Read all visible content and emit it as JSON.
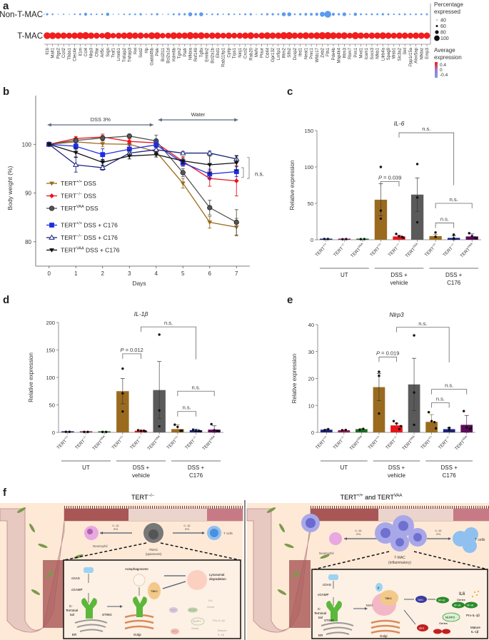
{
  "panels": {
    "a": "a",
    "b": "b",
    "c": "c",
    "d": "d",
    "e": "e",
    "f": "f"
  },
  "chart_data": [
    {
      "id": "a",
      "type": "dotplot",
      "rows": [
        "Non-T-MAC",
        "T-MAC"
      ],
      "genes": [
        "Il1b",
        "Malt1",
        "Ptgs2",
        "Ccrl2",
        "Thbs1",
        "Clec4e",
        "Il1rn",
        "Ccl4",
        "Nlrp3",
        "Cflar",
        "Arl5c",
        "Srgn",
        "Traf1",
        "Lmnb1",
        "Tnfaip2",
        "Tnfaip3",
        "Rel",
        "Sod2",
        "Hp",
        "Gadd45b",
        "Plek",
        "Bcl2l11",
        "Bcl2a1d",
        "Kdm6b",
        "Tgm2",
        "Ptafr",
        "Nfkbia",
        "Rnf149",
        "Tgfbi",
        "Emilin2",
        "Bcl2a1b",
        "Ehd1",
        "Rab11fip1",
        "Cytip",
        "Trps1",
        "Ninj1",
        "Cxcl2",
        "Rab20",
        "Mefv",
        "Plaur",
        "Cd44",
        "Gpr132",
        "Lrrfip1",
        "Ifitm2",
        "Slfn2",
        "Dusp2",
        "Ifrd1",
        "Neat1",
        "Pnrc1",
        "Wfdc17",
        "Zeb2",
        "Fth1",
        "Pde4b",
        "Map4k4",
        "Ifitm3",
        "Rbm7",
        "Pim1",
        "Mxd1",
        "Icam1",
        "Socs3",
        "Nfkb1",
        "Lilrb4a",
        "Spag9",
        "Wsb1",
        "Slc3a2",
        "Skil",
        "Ppp1r15a",
        "Alox5ap",
        "Nfkbiz",
        "Emp3"
      ],
      "non_tmac_pct": [
        55,
        50,
        40,
        45,
        40,
        48,
        52,
        62,
        50,
        48,
        50,
        65,
        40,
        42,
        48,
        50,
        50,
        55,
        42,
        50,
        55,
        40,
        45,
        52,
        55,
        55,
        72,
        58,
        72,
        48,
        50,
        52,
        45,
        52,
        48,
        48,
        52,
        55,
        40,
        50,
        55,
        55,
        52,
        72,
        72,
        50,
        55,
        60,
        60,
        62,
        80,
        95,
        62,
        55,
        70,
        45,
        65,
        52,
        50,
        52,
        52,
        55,
        52,
        48,
        50,
        52,
        48,
        50,
        50,
        52
      ],
      "tmac_pct": [
        95,
        95,
        92,
        92,
        90,
        92,
        95,
        98,
        92,
        90,
        85,
        98,
        85,
        90,
        92,
        95,
        92,
        92,
        85,
        95,
        95,
        85,
        88,
        95,
        92,
        92,
        98,
        92,
        95,
        88,
        92,
        92,
        88,
        92,
        88,
        90,
        92,
        95,
        85,
        92,
        95,
        92,
        92,
        98,
        98,
        92,
        92,
        95,
        92,
        95,
        98,
        98,
        95,
        92,
        95,
        88,
        98,
        92,
        90,
        92,
        92,
        95,
        92,
        90,
        92,
        92,
        90,
        92,
        92,
        92
      ],
      "non_tmac_color": "#5b9bf0",
      "tmac_color": "#f01e1e",
      "size_legend_title": "Percentage expressed",
      "size_legend": [
        "40",
        "60",
        "80",
        "100"
      ],
      "color_legend_title": "Average expression",
      "color_legend": [
        "0.4",
        "0",
        "-0.4"
      ],
      "color_scale": [
        "#f01e1e",
        "#a27ac5",
        "#7a9df0"
      ]
    },
    {
      "id": "b",
      "type": "line",
      "title": "",
      "xlabel": "Days",
      "ylabel": "Body weight (%)",
      "x": [
        0,
        1,
        2,
        3,
        4,
        5,
        6,
        7
      ],
      "xlim": [
        -0.5,
        7.5
      ],
      "ylim": [
        75,
        110
      ],
      "yticks": [
        80,
        90,
        100
      ],
      "annotations": [
        {
          "text": "DSS 3%",
          "from": 0,
          "to": 4
        },
        {
          "text": "Water",
          "from": 4,
          "to": 7
        },
        {
          "text": "n.s."
        }
      ],
      "series": [
        {
          "name": "TERT+/+ DSS",
          "base": "TERT",
          "sup": "+/+",
          "suffix": " DSS",
          "color": "#9a6b1f",
          "marker": "tri-down",
          "values": [
            100,
            100.5,
            100.1,
            100,
            98.5,
            92,
            84,
            83
          ],
          "err": [
            0.3,
            0.5,
            0.6,
            0.5,
            0.7,
            1.0,
            1.2,
            1.8
          ]
        },
        {
          "name": "TERT-/- DSS",
          "base": "TERT",
          "sup": "−/−",
          "suffix": " DSS",
          "color": "#e8141a",
          "marker": "diamond",
          "values": [
            100,
            101.2,
            101.5,
            100.6,
            100.3,
            96.5,
            93,
            92.5
          ],
          "err": [
            0.2,
            0.4,
            0.6,
            0.5,
            0.6,
            1.0,
            1.6,
            3.1
          ]
        },
        {
          "name": "TERTVAA DSS",
          "base": "TERT",
          "sup": "VAA",
          "suffix": " DSS",
          "color": "#555555",
          "marker": "circle",
          "values": [
            100,
            100.8,
            101.3,
            101.7,
            100.7,
            94.2,
            87,
            84
          ],
          "err": [
            0.2,
            0.4,
            0.5,
            0.4,
            1.2,
            0.8,
            1.5,
            2.6
          ]
        },
        {
          "name": "TERT+/+ DSS + C176",
          "base": "TERT",
          "sup": "+/+",
          "suffix": " DSS + C176",
          "color": "#1c2ee0",
          "marker": "square",
          "values": [
            100,
            99.6,
            97.9,
            99,
            99.9,
            96.2,
            93.9,
            94.4
          ],
          "err": [
            0.3,
            0.6,
            1.2,
            0.8,
            1.0,
            0.6,
            1.0,
            1.0
          ]
        },
        {
          "name": "TERT-/- DSS + C176",
          "base": "TERT",
          "sup": "−/−",
          "suffix": " DSS + C176",
          "color": "#1a237e",
          "marker": "tri-up-open",
          "values": [
            100,
            95.8,
            95.2,
            98.2,
            98.9,
            98.2,
            98.2,
            97
          ],
          "err": [
            0.2,
            1.5,
            0.5,
            0.6,
            0.5,
            0.3,
            0.4,
            0.6
          ]
        },
        {
          "name": "TERTVAA DSS + C176",
          "base": "TERT",
          "sup": "VAA",
          "suffix": " DSS + C176",
          "color": "#111111",
          "marker": "tri-down",
          "values": [
            100,
            98.3,
            96.3,
            97.6,
            97.9,
            96.6,
            95.8,
            96.2
          ],
          "err": [
            0.2,
            0.9,
            0.6,
            0.6,
            0.5,
            0.6,
            1.8,
            1.5
          ]
        }
      ]
    },
    {
      "id": "c",
      "type": "bar",
      "title": "IL-6",
      "ylabel": "Relative expression",
      "ylim": [
        0,
        150
      ],
      "yticks": [
        0,
        50,
        100,
        150
      ],
      "categories": [
        "TERT+/+",
        "TERT−/−",
        "TERTVAA",
        "TERT+/+",
        "TERT−/−",
        "TERTVAA",
        "TERT+/+",
        "TERT−/−",
        "TERTVAA"
      ],
      "category_sups": [
        "+/+",
        "−/−",
        "VAA",
        "+/+",
        "−/−",
        "VAA",
        "+/+",
        "−/−",
        "VAA"
      ],
      "groups": [
        {
          "label1": "UT",
          "label2": ""
        },
        {
          "label1": "DSS +",
          "label2": "vehicle"
        },
        {
          "label1": "DSS +",
          "label2": "C176"
        }
      ],
      "values": [
        1,
        0.8,
        0.8,
        55,
        4.5,
        62,
        5,
        2.5,
        4.5
      ],
      "err": [
        0.2,
        0.2,
        0.2,
        22,
        1.5,
        23,
        2.5,
        3,
        3.5
      ],
      "points": [
        [
          1,
          1
        ],
        [
          0.7,
          0.9
        ],
        [
          0.8,
          0.9
        ],
        [
          100,
          40,
          29
        ],
        [
          8,
          5,
          4,
          3
        ],
        [
          104,
          58,
          24
        ],
        [
          10,
          4,
          4
        ],
        [
          7,
          2,
          1
        ],
        [
          9,
          5,
          3,
          2
        ]
      ],
      "colors": [
        "#1a237e",
        "#8b1e5a",
        "#1b6e1f",
        "#9a6b1f",
        "#e8141a",
        "#5a5a5a",
        "#9a6b1f",
        "#1a237e",
        "#5c0a5c"
      ],
      "comparisons": [
        {
          "from": 3,
          "to": 4,
          "label": "P = 0.039",
          "italic_p": true,
          "level": 80
        },
        {
          "from": 4,
          "to": 7,
          "label": "n.s.",
          "level": 147,
          "drop_right": 75
        },
        {
          "from": 6,
          "to": 8,
          "label": "n.s.",
          "level": 50
        },
        {
          "from": 6,
          "to": 7,
          "label": "n.s.",
          "level": 23
        }
      ]
    },
    {
      "id": "d",
      "type": "bar",
      "title": "IL-1β",
      "ylabel": "Relative expression",
      "ylim": [
        0,
        200
      ],
      "yticks": [
        0,
        50,
        100,
        150,
        200
      ],
      "categories": [
        "TERT+/+",
        "TERT−/−",
        "TERTVAA",
        "TERT+/+",
        "TERT−/−",
        "TERTVAA",
        "TERT+/+",
        "TERT−/−",
        "TERTVAA"
      ],
      "category_sups": [
        "+/+",
        "−/−",
        "VAA",
        "+/+",
        "−/−",
        "VAA",
        "+/+",
        "−/−",
        "VAA"
      ],
      "groups": [
        {
          "label1": "UT",
          "label2": ""
        },
        {
          "label1": "DSS +",
          "label2": "vehicle"
        },
        {
          "label1": "DSS +",
          "label2": "C176"
        }
      ],
      "values": [
        1,
        0.8,
        0.8,
        75,
        3,
        77,
        6,
        4,
        5
      ],
      "err": [
        0.2,
        0.2,
        0.2,
        23,
        1,
        52,
        8,
        2,
        7
      ],
      "points": [
        [
          1,
          1
        ],
        [
          0.8,
          0.8
        ],
        [
          0.8,
          0.8
        ],
        [
          116,
          71,
          38
        ],
        [
          4,
          3,
          3,
          2
        ],
        [
          178,
          40,
          11
        ],
        [
          14,
          10,
          3,
          3
        ],
        [
          5,
          3,
          3,
          2
        ],
        [
          15,
          4,
          3,
          2
        ]
      ],
      "colors": [
        "#1a237e",
        "#8b1e5a",
        "#1b6e1f",
        "#9a6b1f",
        "#e8141a",
        "#5a5a5a",
        "#9a6b1f",
        "#1a237e",
        "#5c0a5c"
      ],
      "comparisons": [
        {
          "from": 3,
          "to": 4,
          "label": "P = 0.012",
          "italic_p": true,
          "level": 143
        },
        {
          "from": 4,
          "to": 7,
          "label": "n.s.",
          "level": 192,
          "drop_right": 133
        },
        {
          "from": 6,
          "to": 8,
          "label": "n.s.",
          "level": 75
        },
        {
          "from": 6,
          "to": 7,
          "label": "n.s.",
          "level": 38
        }
      ]
    },
    {
      "id": "e",
      "type": "bar",
      "title": "Nlrp3",
      "ylabel": "Relative expression",
      "ylim": [
        0,
        40
      ],
      "yticks": [
        0,
        10,
        20,
        30,
        40
      ],
      "categories": [
        "TERT+/+",
        "TERT−/−",
        "TERTVAA",
        "TERT+/+",
        "TERT−/−",
        "TERTVAA",
        "TERT+/+",
        "TERT−/−",
        "TERTVAA"
      ],
      "category_sups": [
        "+/+",
        "−/−",
        "VAA",
        "+/+",
        "−/−",
        "VAA",
        "+/+",
        "−/−",
        "VAA"
      ],
      "groups": [
        {
          "label1": "UT",
          "label2": ""
        },
        {
          "label1": "DSS +",
          "label2": "vehicle"
        },
        {
          "label1": "DSS +",
          "label2": "C176"
        }
      ],
      "values": [
        1,
        0.8,
        1.2,
        16.8,
        2.6,
        17.8,
        3.9,
        1.2,
        2.8
      ],
      "err": [
        0.2,
        0.1,
        0.2,
        5,
        0.8,
        9.7,
        2.7,
        0.5,
        3.5
      ],
      "points": [
        [
          0.8,
          1.2
        ],
        [
          0.8,
          0.9
        ],
        [
          1,
          1.3
        ],
        [
          22.5,
          21,
          7
        ],
        [
          4.2,
          3.3,
          1.2,
          2.3
        ],
        [
          36,
          14.8,
          2.8
        ],
        [
          7.5,
          4.2,
          3.8,
          1.5
        ],
        [
          1.7,
          1,
          1.5
        ],
        [
          7.9,
          1.8,
          1.2,
          1.6
        ]
      ],
      "colors": [
        "#1a237e",
        "#8b1e5a",
        "#1b6e1f",
        "#9a6b1f",
        "#e8141a",
        "#5a5a5a",
        "#9a6b1f",
        "#1a237e",
        "#5c0a5c"
      ],
      "comparisons": [
        {
          "from": 3,
          "to": 4,
          "label": "P = 0.019",
          "italic_p": true,
          "level": 28
        },
        {
          "from": 4,
          "to": 7,
          "label": "n.s.",
          "level": 39,
          "drop_right": 26
        },
        {
          "from": 6,
          "to": 8,
          "label": "n.s.",
          "level": 16
        },
        {
          "from": 6,
          "to": 7,
          "label": "n.s.",
          "level": 11
        }
      ]
    }
  ],
  "diagram": {
    "left_title": "TERT",
    "left_title_sup": "−/−",
    "right_title_a": "TERT",
    "right_title_a_sup": "+/+",
    "right_title_mid": " and TERT",
    "right_title_b_sup": "VAA",
    "left": {
      "il_label": "IL-1β",
      "ifn_label": "IFN",
      "neutrophil": "Neutrophil",
      "t_cells": "T cells",
      "tmac": "TMAC",
      "tmac_state": "(quiescent)",
      "cgas": "cGAS",
      "cgamp": "cGAMP",
      "c_terminal": "C-",
      "terminal": "Terminal",
      "tail": "tail",
      "sting": "STING",
      "er": "ER",
      "golgi": "Golgi",
      "autophagosome": "Autophagosome",
      "tbk1": "TBK1",
      "lysosomal": "Lysosomal",
      "degradation": "degradation",
      "tak1": "TAK1",
      "nfkb": "NF-κB",
      "irf3": "IRF3",
      "genes": "Genes",
      "il6": "IL6",
      "nlrp3": "NLRP3",
      "pro_il1b": "Pro-IL-1β",
      "mature": "Mature",
      "mature_il": "IL-1β"
    },
    "right": {
      "il_label": "IL-1β",
      "ifn_label": "IFN",
      "neutrophil": "Neutrophil",
      "t_cells": "T cells",
      "tmac": "T-MAC",
      "tmac_state": "(inflammatory)",
      "cgas": "cGAS",
      "cgamp": "cGAMP",
      "c_terminal": "C-",
      "terminal": "Terminal",
      "tail": "tail",
      "sting": "STING",
      "er": "ER",
      "golgi": "Golgi",
      "tert": "TERT",
      "tbk1": "TBK1",
      "tak1": "TAK1",
      "nfkb": "NF-κB",
      "irf3": "IRF3",
      "genes": "Genes",
      "il6": "IL6",
      "nlrp3": "NLRP3",
      "pro_il1b": "Pro-IL-1β",
      "mature": "Mature",
      "mature_il": "IL-1β",
      "beta": "β"
    }
  }
}
